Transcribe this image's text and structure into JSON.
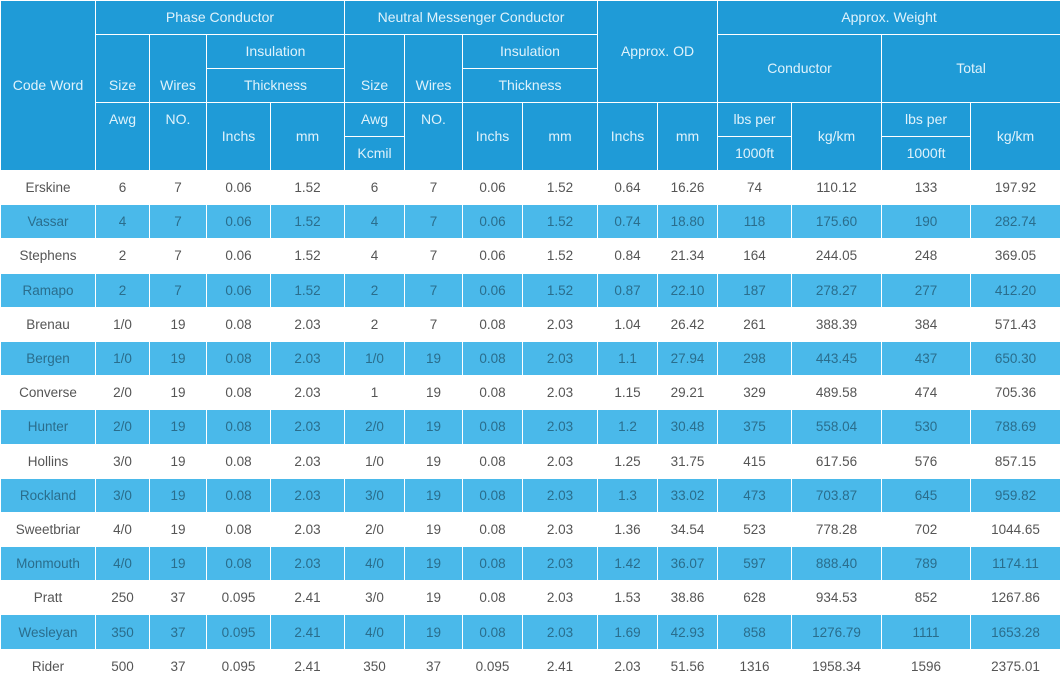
{
  "header": {
    "code_word": "Code Word",
    "phase": "Phase Conductor",
    "neutral": "Neutral Messenger Conductor",
    "od": "Approx. OD",
    "weight": "Approx. Weight",
    "size_awg_a": "Size",
    "size_awg_b": "Awg",
    "wires_a": "Wires",
    "wires_b": "NO.",
    "insulation_a": "Insulation",
    "insulation_b": "Thickness",
    "n_size_a": "Size",
    "n_size_b": "Awg",
    "n_size_c": "Kcmil",
    "n_wires_a": "Wires",
    "n_wires_b": "NO.",
    "n_insulation_a": "Insulation",
    "n_insulation_b": "Thickness",
    "conductor": "Conductor",
    "total": "Total",
    "inchs": "Inchs",
    "mm": "mm",
    "lbs_a": "lbs per",
    "lbs_b": "1000ft",
    "kgkm": "kg/km"
  },
  "rows": [
    [
      "Erskine",
      "6",
      "7",
      "0.06",
      "1.52",
      "6",
      "7",
      "0.06",
      "1.52",
      "0.64",
      "16.26",
      "74",
      "110.12",
      "133",
      "197.92"
    ],
    [
      "Vassar",
      "4",
      "7",
      "0.06",
      "1.52",
      "4",
      "7",
      "0.06",
      "1.52",
      "0.74",
      "18.80",
      "118",
      "175.60",
      "190",
      "282.74"
    ],
    [
      "Stephens",
      "2",
      "7",
      "0.06",
      "1.52",
      "4",
      "7",
      "0.06",
      "1.52",
      "0.84",
      "21.34",
      "164",
      "244.05",
      "248",
      "369.05"
    ],
    [
      "Ramapo",
      "2",
      "7",
      "0.06",
      "1.52",
      "2",
      "7",
      "0.06",
      "1.52",
      "0.87",
      "22.10",
      "187",
      "278.27",
      "277",
      "412.20"
    ],
    [
      "Brenau",
      "1/0",
      "19",
      "0.08",
      "2.03",
      "2",
      "7",
      "0.08",
      "2.03",
      "1.04",
      "26.42",
      "261",
      "388.39",
      "384",
      "571.43"
    ],
    [
      "Bergen",
      "1/0",
      "19",
      "0.08",
      "2.03",
      "1/0",
      "19",
      "0.08",
      "2.03",
      "1.1",
      "27.94",
      "298",
      "443.45",
      "437",
      "650.30"
    ],
    [
      "Converse",
      "2/0",
      "19",
      "0.08",
      "2.03",
      "1",
      "19",
      "0.08",
      "2.03",
      "1.15",
      "29.21",
      "329",
      "489.58",
      "474",
      "705.36"
    ],
    [
      "Hunter",
      "2/0",
      "19",
      "0.08",
      "2.03",
      "2/0",
      "19",
      "0.08",
      "2.03",
      "1.2",
      "30.48",
      "375",
      "558.04",
      "530",
      "788.69"
    ],
    [
      "Hollins",
      "3/0",
      "19",
      "0.08",
      "2.03",
      "1/0",
      "19",
      "0.08",
      "2.03",
      "1.25",
      "31.75",
      "415",
      "617.56",
      "576",
      "857.15"
    ],
    [
      "Rockland",
      "3/0",
      "19",
      "0.08",
      "2.03",
      "3/0",
      "19",
      "0.08",
      "2.03",
      "1.3",
      "33.02",
      "473",
      "703.87",
      "645",
      "959.82"
    ],
    [
      "Sweetbriar",
      "4/0",
      "19",
      "0.08",
      "2.03",
      "2/0",
      "19",
      "0.08",
      "2.03",
      "1.36",
      "34.54",
      "523",
      "778.28",
      "702",
      "1044.65"
    ],
    [
      "Monmouth",
      "4/0",
      "19",
      "0.08",
      "2.03",
      "4/0",
      "19",
      "0.08",
      "2.03",
      "1.42",
      "36.07",
      "597",
      "888.40",
      "789",
      "1174.11"
    ],
    [
      "Pratt",
      "250",
      "37",
      "0.095",
      "2.41",
      "3/0",
      "19",
      "0.08",
      "2.03",
      "1.53",
      "38.86",
      "628",
      "934.53",
      "852",
      "1267.86"
    ],
    [
      "Wesleyan",
      "350",
      "37",
      "0.095",
      "2.41",
      "4/0",
      "19",
      "0.08",
      "2.03",
      "1.69",
      "42.93",
      "858",
      "1276.79",
      "1111",
      "1653.28"
    ],
    [
      "Rider",
      "500",
      "37",
      "0.095",
      "2.41",
      "350",
      "37",
      "0.095",
      "2.41",
      "2.03",
      "51.56",
      "1316",
      "1958.34",
      "1596",
      "2375.01"
    ]
  ]
}
